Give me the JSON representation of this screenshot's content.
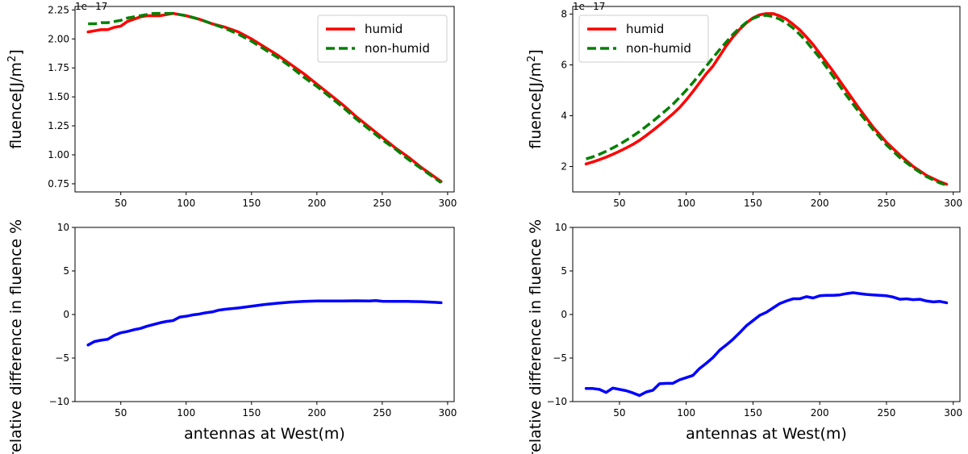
{
  "chart_data": [
    {
      "type": "line",
      "xlim": [
        15,
        305
      ],
      "ylim": [
        0.68,
        2.28
      ],
      "xticks": [
        "50",
        "100",
        "150",
        "200",
        "250",
        "300"
      ],
      "yticks": [
        "0.75",
        "1.00",
        "1.25",
        "1.50",
        "1.75",
        "2.00",
        "2.25"
      ],
      "offset_text": "1e−17",
      "ylabel": "fluence[J/m²]",
      "legend_position": "upper-right",
      "series": [
        {
          "name": "humid",
          "color": "#ff0000",
          "style": "solid",
          "x": [
            25,
            30,
            35,
            40,
            45,
            50,
            55,
            60,
            65,
            70,
            75,
            80,
            85,
            90,
            95,
            100,
            110,
            120,
            130,
            140,
            150,
            160,
            170,
            180,
            190,
            200,
            210,
            220,
            230,
            240,
            250,
            260,
            270,
            280,
            290,
            295
          ],
          "y": [
            2.06,
            2.07,
            2.08,
            2.08,
            2.1,
            2.11,
            2.15,
            2.17,
            2.19,
            2.2,
            2.2,
            2.2,
            2.21,
            2.22,
            2.21,
            2.2,
            2.17,
            2.13,
            2.1,
            2.06,
            2.0,
            1.93,
            1.86,
            1.78,
            1.7,
            1.61,
            1.52,
            1.43,
            1.33,
            1.24,
            1.15,
            1.06,
            0.98,
            0.89,
            0.81,
            0.77
          ]
        },
        {
          "name": "non-humid",
          "color": "#008000",
          "style": "dashed",
          "x": [
            25,
            30,
            35,
            40,
            45,
            50,
            55,
            60,
            65,
            70,
            75,
            80,
            85,
            90,
            95,
            100,
            110,
            120,
            130,
            140,
            150,
            160,
            170,
            180,
            190,
            200,
            210,
            220,
            230,
            240,
            250,
            260,
            270,
            280,
            290,
            295
          ],
          "y": [
            2.13,
            2.13,
            2.14,
            2.14,
            2.15,
            2.16,
            2.18,
            2.19,
            2.2,
            2.21,
            2.22,
            2.22,
            2.22,
            2.22,
            2.21,
            2.2,
            2.17,
            2.13,
            2.09,
            2.04,
            1.98,
            1.91,
            1.84,
            1.76,
            1.67,
            1.59,
            1.5,
            1.41,
            1.31,
            1.22,
            1.13,
            1.05,
            0.96,
            0.88,
            0.8,
            0.76
          ]
        }
      ]
    },
    {
      "type": "line",
      "xlim": [
        15,
        305
      ],
      "ylim": [
        1.0,
        8.3
      ],
      "xticks": [
        "50",
        "100",
        "150",
        "200",
        "250",
        "300"
      ],
      "yticks": [
        "2",
        "4",
        "6",
        "8"
      ],
      "offset_text": "1e−17",
      "ylabel": "fluence[J/m²]",
      "legend_position": "upper-left",
      "series": [
        {
          "name": "humid",
          "color": "#ff0000",
          "style": "solid",
          "x": [
            25,
            30,
            35,
            40,
            45,
            50,
            55,
            60,
            65,
            70,
            75,
            80,
            85,
            90,
            95,
            100,
            105,
            110,
            115,
            120,
            125,
            130,
            135,
            140,
            145,
            150,
            155,
            160,
            165,
            170,
            175,
            180,
            185,
            190,
            195,
            200,
            210,
            220,
            230,
            240,
            250,
            260,
            270,
            280,
            290,
            295
          ],
          "y": [
            2.1,
            2.18,
            2.27,
            2.37,
            2.48,
            2.6,
            2.73,
            2.87,
            3.03,
            3.22,
            3.42,
            3.63,
            3.85,
            4.07,
            4.32,
            4.62,
            4.95,
            5.3,
            5.65,
            5.95,
            6.35,
            6.75,
            7.1,
            7.4,
            7.65,
            7.85,
            7.97,
            8.02,
            8.02,
            7.93,
            7.8,
            7.6,
            7.38,
            7.1,
            6.8,
            6.45,
            5.75,
            5.0,
            4.25,
            3.55,
            2.95,
            2.45,
            2.0,
            1.65,
            1.4,
            1.3
          ]
        },
        {
          "name": "non-humid",
          "color": "#008000",
          "style": "dashed",
          "x": [
            25,
            30,
            35,
            40,
            45,
            50,
            55,
            60,
            65,
            70,
            75,
            80,
            85,
            90,
            95,
            100,
            105,
            110,
            115,
            120,
            125,
            130,
            135,
            140,
            145,
            150,
            155,
            160,
            165,
            170,
            175,
            180,
            185,
            190,
            195,
            200,
            210,
            220,
            230,
            240,
            250,
            260,
            270,
            280,
            290,
            295
          ],
          "y": [
            2.3,
            2.38,
            2.48,
            2.6,
            2.73,
            2.87,
            3.03,
            3.2,
            3.38,
            3.58,
            3.78,
            4.0,
            4.22,
            4.45,
            4.72,
            5.0,
            5.3,
            5.62,
            5.95,
            6.28,
            6.6,
            6.9,
            7.2,
            7.45,
            7.67,
            7.83,
            7.93,
            7.95,
            7.9,
            7.8,
            7.65,
            7.45,
            7.2,
            6.92,
            6.6,
            6.28,
            5.55,
            4.8,
            4.1,
            3.45,
            2.85,
            2.35,
            1.95,
            1.6,
            1.35,
            1.27
          ]
        }
      ]
    },
    {
      "type": "line",
      "xlim": [
        15,
        305
      ],
      "ylim": [
        -10,
        10
      ],
      "xticks": [
        "50",
        "100",
        "150",
        "200",
        "250",
        "300"
      ],
      "yticks": [
        "−10",
        "−5",
        "0",
        "5",
        "10"
      ],
      "ylabel": "relative difference in fluence %",
      "xlabel": "antennas at West(m)",
      "series": [
        {
          "color": "#0000ff",
          "style": "solid",
          "x": [
            25,
            30,
            35,
            40,
            45,
            50,
            55,
            60,
            65,
            70,
            75,
            80,
            85,
            90,
            95,
            100,
            105,
            110,
            115,
            120,
            125,
            130,
            140,
            150,
            160,
            170,
            180,
            190,
            200,
            210,
            220,
            230,
            240,
            245,
            250,
            260,
            270,
            280,
            290,
            295
          ],
          "y": [
            -3.5,
            -3.1,
            -2.95,
            -2.85,
            -2.4,
            -2.1,
            -1.95,
            -1.75,
            -1.6,
            -1.35,
            -1.15,
            -0.95,
            -0.8,
            -0.7,
            -0.3,
            -0.2,
            -0.05,
            0.05,
            0.2,
            0.3,
            0.5,
            0.6,
            0.75,
            0.95,
            1.15,
            1.3,
            1.42,
            1.5,
            1.55,
            1.55,
            1.55,
            1.58,
            1.55,
            1.6,
            1.52,
            1.5,
            1.5,
            1.47,
            1.4,
            1.35
          ]
        }
      ]
    },
    {
      "type": "line",
      "xlim": [
        15,
        305
      ],
      "ylim": [
        -10,
        10
      ],
      "xticks": [
        "50",
        "100",
        "150",
        "200",
        "250",
        "300"
      ],
      "yticks": [
        "−10",
        "−5",
        "0",
        "5",
        "10"
      ],
      "ylabel": "relative difference in fluence %",
      "xlabel": "antennas at West(m)",
      "series": [
        {
          "color": "#0000ff",
          "style": "solid",
          "x": [
            25,
            30,
            35,
            40,
            45,
            50,
            55,
            60,
            65,
            70,
            75,
            80,
            85,
            90,
            95,
            100,
            105,
            110,
            115,
            120,
            125,
            130,
            135,
            140,
            145,
            150,
            155,
            160,
            165,
            170,
            175,
            180,
            185,
            190,
            195,
            200,
            205,
            210,
            215,
            220,
            225,
            230,
            235,
            240,
            245,
            250,
            255,
            260,
            265,
            270,
            275,
            280,
            285,
            290,
            295
          ],
          "y": [
            -8.5,
            -8.5,
            -8.6,
            -8.95,
            -8.45,
            -8.6,
            -8.75,
            -9.0,
            -9.3,
            -8.9,
            -8.7,
            -7.95,
            -7.9,
            -7.9,
            -7.5,
            -7.25,
            -7.0,
            -6.2,
            -5.6,
            -4.95,
            -4.1,
            -3.5,
            -2.85,
            -2.1,
            -1.3,
            -0.7,
            -0.1,
            0.25,
            0.75,
            1.25,
            1.55,
            1.8,
            1.8,
            2.05,
            1.9,
            2.15,
            2.2,
            2.2,
            2.25,
            2.4,
            2.5,
            2.4,
            2.3,
            2.25,
            2.2,
            2.15,
            2.0,
            1.75,
            1.8,
            1.7,
            1.75,
            1.55,
            1.45,
            1.5,
            1.35
          ]
        }
      ]
    }
  ]
}
